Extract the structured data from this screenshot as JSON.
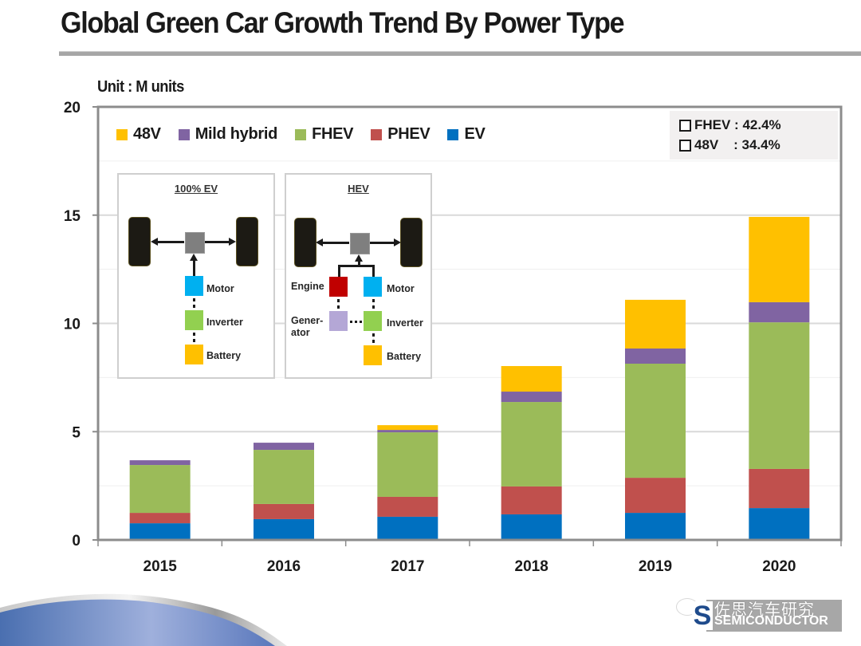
{
  "header": {
    "title": "Global Green Car Growth Trend By Power Type",
    "unit_label": "Unit : M units"
  },
  "callout": {
    "lines": [
      {
        "label": "FHEV : 42.4%"
      },
      {
        "label": "48V    : 34.4%"
      }
    ]
  },
  "legend": [
    {
      "name": "48V",
      "color": "#ffc000"
    },
    {
      "name": "Mild hybrid",
      "color": "#8064a2"
    },
    {
      "name": "FHEV",
      "color": "#9bbb59"
    },
    {
      "name": "PHEV",
      "color": "#c0504d"
    },
    {
      "name": "EV",
      "color": "#0070c0"
    }
  ],
  "diagrams": {
    "ev": {
      "title": "100% EV",
      "components": [
        {
          "label": "Motor",
          "color": "#00b0f0"
        },
        {
          "label": "Inverter",
          "color": "#92d050"
        },
        {
          "label": "Battery",
          "color": "#ffc000"
        }
      ]
    },
    "hev": {
      "title": "HEV",
      "components": [
        {
          "label": "Engine",
          "color": "#c00000"
        },
        {
          "label": "Motor",
          "color": "#00b0f0"
        },
        {
          "label": "Gener-\nator",
          "color": "#b4a7d6"
        },
        {
          "label": "Inverter",
          "color": "#92d050"
        },
        {
          "label": "Battery",
          "color": "#ffc000"
        }
      ]
    }
  },
  "logo": {
    "cn_text": "佐思汽车研究",
    "en_text": "SEMICONDUCTOR",
    "mark": "S"
  },
  "chart_data": {
    "type": "bar",
    "stacked": true,
    "title": "Global Green Car Growth Trend By Power Type",
    "xlabel": "",
    "ylabel": "Unit : M units",
    "categories": [
      "2015",
      "2016",
      "2017",
      "2018",
      "2019",
      "2020"
    ],
    "ylim": [
      0,
      20
    ],
    "yticks": [
      0,
      5,
      10,
      15,
      20
    ],
    "grid": true,
    "legend_position": "top-left",
    "series": [
      {
        "name": "EV",
        "color": "#0070c0",
        "values": [
          0.77,
          0.96,
          1.07,
          1.18,
          1.25,
          1.47
        ]
      },
      {
        "name": "PHEV",
        "color": "#c0504d",
        "values": [
          0.48,
          0.7,
          0.92,
          1.29,
          1.62,
          1.81
        ]
      },
      {
        "name": "FHEV",
        "color": "#9bbb59",
        "values": [
          2.21,
          2.5,
          2.98,
          3.9,
          5.27,
          6.77
        ]
      },
      {
        "name": "Mild hybrid",
        "color": "#8064a2",
        "values": [
          0.22,
          0.33,
          0.11,
          0.48,
          0.7,
          0.93
        ]
      },
      {
        "name": "48V",
        "color": "#ffc000",
        "values": [
          0.0,
          0.0,
          0.22,
          1.18,
          2.25,
          3.94
        ]
      }
    ],
    "annotations": [
      "FHEV : 42.4%",
      "48V : 34.4%"
    ]
  }
}
